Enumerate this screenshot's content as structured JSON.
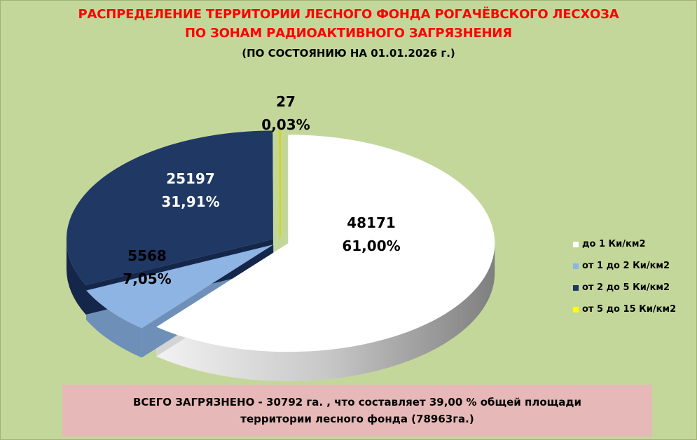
{
  "header": {
    "title_line1": "РАСПРЕДЕЛЕНИЕ ТЕРРИТОРИИ ЛЕСНОГО ФОНДА РОГАЧЁВСКОГО ЛЕСХОЗА",
    "title_line2": "ПО ЗОНАМ РАДИОАКТИВНОГО ЗАГРЯЗНЕНИЯ",
    "subtitle": "(ПО СОСТОЯНИЮ  НА 01.01.2026 г.)"
  },
  "chart_data": {
    "type": "pie",
    "style": "3d-exploded",
    "legend_position": "right",
    "slices": [
      {
        "name": "до 1 Ки/км2",
        "value": 48171,
        "percent": "61,00%",
        "color": "#ffffff",
        "side": "#d4d4d4",
        "label_color": "#000000"
      },
      {
        "name": "от 1 до 2 Ки/км2",
        "value": 5568,
        "percent": "7,05%",
        "color": "#8db4e2",
        "side": "#6e8fb8",
        "label_color": "#000000"
      },
      {
        "name": "от 2 до 5 Ки/км2",
        "value": 25197,
        "percent": "31,91%",
        "color": "#1f3864",
        "side": "#14264a",
        "label_color": "#ffffff"
      },
      {
        "name": "от 5 до 15 Ки/км2",
        "value": 27,
        "percent": "0,03%",
        "color": "#ffff00",
        "side": "#cccc00",
        "label_color": "#000000"
      }
    ]
  },
  "footer": {
    "line1": "ВСЕГО ЗАГРЯЗНЕНО  - 30792 га. , что составляет  39,00 %  общей площади",
    "line2": "территории  лесного фонда  (78963га.)"
  }
}
